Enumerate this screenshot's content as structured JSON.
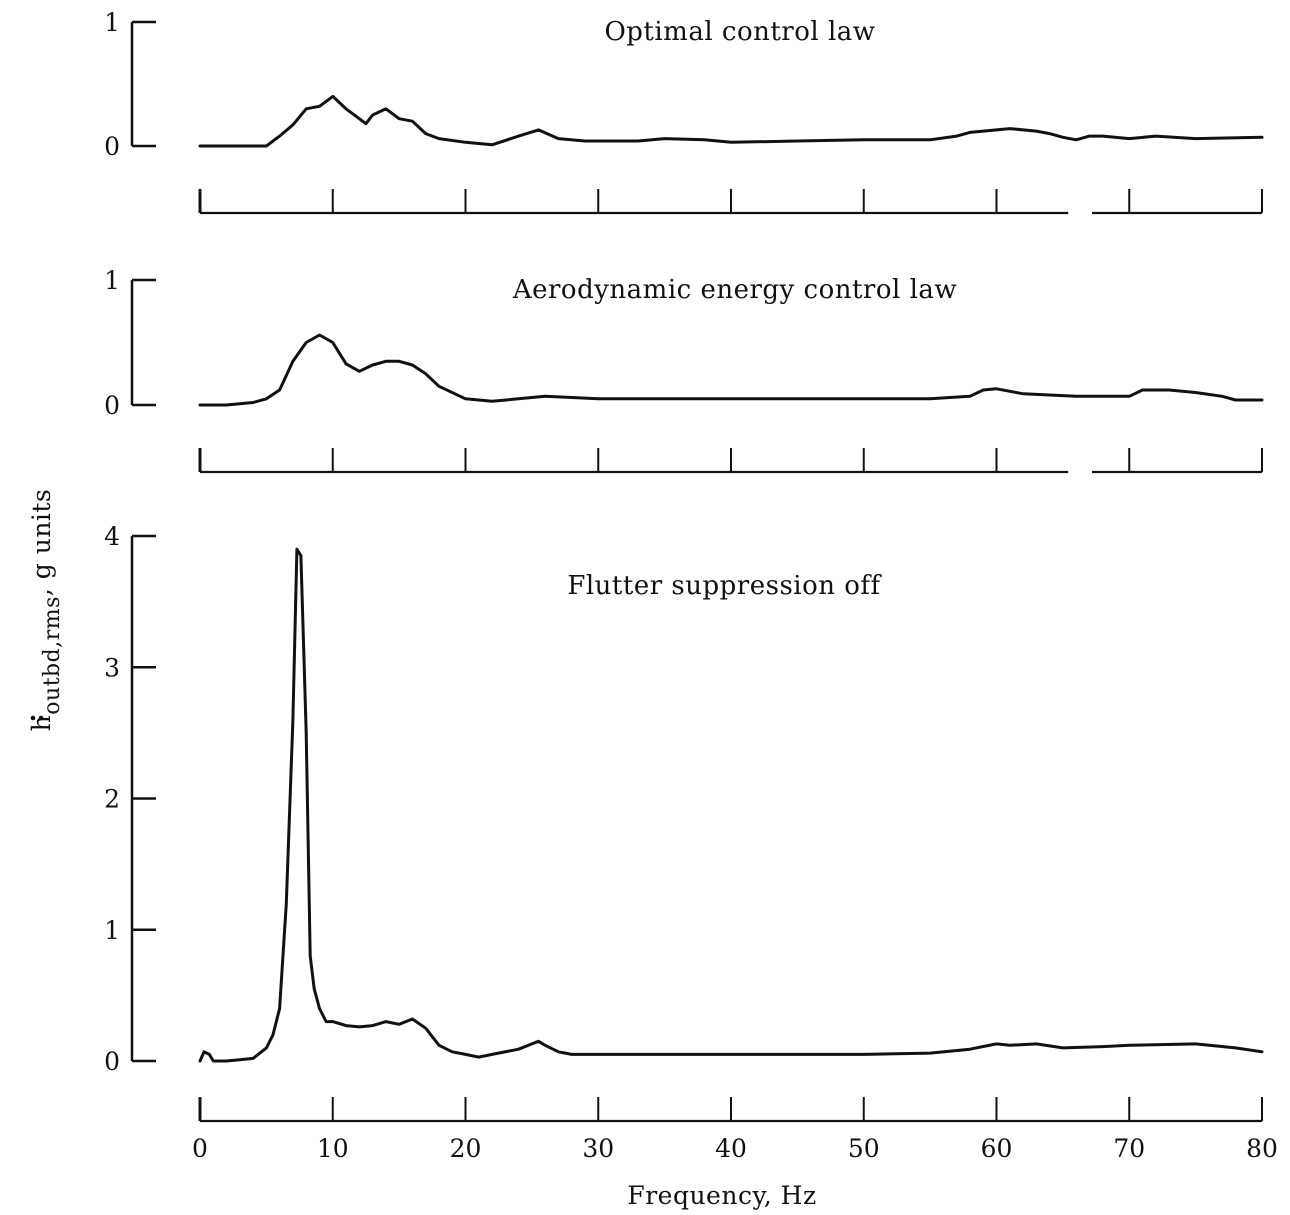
{
  "y_axis_label": {
    "main": "h",
    "subscript": "outbd,rms",
    "units": ", g units"
  },
  "x_axis_label": "Frequency, Hz",
  "chart_data": [
    {
      "type": "line",
      "title": "Optimal control law",
      "xlim": [
        0,
        80
      ],
      "ylim": [
        0,
        1
      ],
      "yticks": [
        0,
        1
      ],
      "xticks": [
        0,
        10,
        20,
        30,
        40,
        50,
        60,
        70,
        80
      ],
      "x": [
        0,
        2,
        4,
        5,
        6,
        7,
        8,
        9,
        10,
        11,
        12,
        12.5,
        13,
        14,
        15,
        16,
        17,
        18,
        20,
        22,
        24,
        25.5,
        27,
        29,
        30,
        33,
        35,
        38,
        40,
        45,
        50,
        55,
        57,
        58,
        60,
        61,
        63,
        64,
        65,
        66,
        67,
        68,
        70,
        72,
        75,
        80
      ],
      "y": [
        0.0,
        0.0,
        0.0,
        0.0,
        0.08,
        0.17,
        0.3,
        0.32,
        0.4,
        0.3,
        0.22,
        0.18,
        0.25,
        0.3,
        0.22,
        0.2,
        0.1,
        0.06,
        0.03,
        0.01,
        0.08,
        0.13,
        0.06,
        0.04,
        0.04,
        0.04,
        0.06,
        0.05,
        0.03,
        0.04,
        0.05,
        0.05,
        0.08,
        0.11,
        0.13,
        0.14,
        0.12,
        0.1,
        0.07,
        0.05,
        0.08,
        0.08,
        0.06,
        0.08,
        0.06,
        0.07
      ]
    },
    {
      "type": "line",
      "title": "Aerodynamic energy control law",
      "xlim": [
        0,
        80
      ],
      "ylim": [
        0,
        1
      ],
      "yticks": [
        0,
        1
      ],
      "xticks": [
        0,
        10,
        20,
        30,
        40,
        50,
        60,
        70,
        80
      ],
      "x": [
        0,
        2,
        4,
        5,
        6,
        7,
        8,
        9,
        10,
        11,
        12,
        13,
        14,
        15,
        16,
        17,
        18,
        20,
        22,
        24,
        26,
        28,
        30,
        33,
        35,
        40,
        45,
        50,
        55,
        58,
        59,
        60,
        62,
        64,
        66,
        70,
        71,
        73,
        75,
        77,
        78,
        80
      ],
      "y": [
        0.0,
        0.0,
        0.02,
        0.05,
        0.12,
        0.35,
        0.5,
        0.56,
        0.5,
        0.33,
        0.27,
        0.32,
        0.35,
        0.35,
        0.32,
        0.25,
        0.15,
        0.05,
        0.03,
        0.05,
        0.07,
        0.06,
        0.05,
        0.05,
        0.05,
        0.05,
        0.05,
        0.05,
        0.05,
        0.07,
        0.12,
        0.13,
        0.09,
        0.08,
        0.07,
        0.07,
        0.12,
        0.12,
        0.1,
        0.07,
        0.04,
        0.04
      ]
    },
    {
      "type": "line",
      "title": "Flutter suppression off",
      "xlim": [
        0,
        80
      ],
      "ylim": [
        0,
        4
      ],
      "yticks": [
        0,
        1,
        2,
        3,
        4
      ],
      "xticks": [
        0,
        10,
        20,
        30,
        40,
        50,
        60,
        70,
        80
      ],
      "xlabel": "Frequency, Hz",
      "x": [
        0,
        0.3,
        0.7,
        1,
        2,
        3,
        4,
        5,
        5.5,
        6,
        6.5,
        7,
        7.3,
        7.6,
        8,
        8.3,
        8.6,
        9,
        9.5,
        10,
        11,
        12,
        13,
        14,
        15,
        16,
        17,
        18,
        19,
        20,
        21,
        22,
        24,
        25,
        25.5,
        26,
        27,
        28,
        30,
        35,
        40,
        50,
        55,
        58,
        60,
        61,
        63,
        65,
        68,
        70,
        75,
        78,
        80
      ],
      "y": [
        0.0,
        0.07,
        0.05,
        0.0,
        0.0,
        0.01,
        0.02,
        0.1,
        0.2,
        0.4,
        1.2,
        2.6,
        3.9,
        3.85,
        2.5,
        0.8,
        0.55,
        0.4,
        0.3,
        0.3,
        0.27,
        0.26,
        0.27,
        0.3,
        0.28,
        0.32,
        0.25,
        0.12,
        0.07,
        0.05,
        0.03,
        0.05,
        0.09,
        0.13,
        0.15,
        0.12,
        0.07,
        0.05,
        0.05,
        0.05,
        0.05,
        0.05,
        0.06,
        0.09,
        0.13,
        0.12,
        0.13,
        0.1,
        0.11,
        0.12,
        0.13,
        0.1,
        0.07
      ]
    }
  ]
}
